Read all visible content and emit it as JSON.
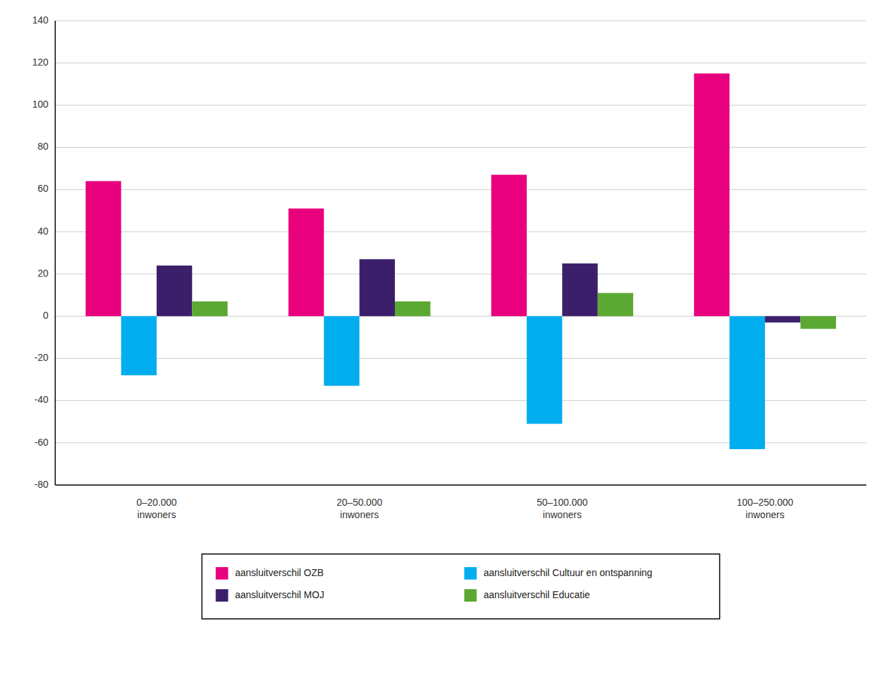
{
  "chart_data": {
    "type": "bar",
    "categories": [
      "0–20.000\ninwoners",
      "20–50.000\ninwoners",
      "50–100.000\ninwoners",
      "100–250.000\ninwoners"
    ],
    "series": [
      {
        "name": "aansluitverschil OZB",
        "color": "#E8007D",
        "values": [
          64,
          51,
          67,
          115
        ]
      },
      {
        "name": "aansluitverschil Cultuur en ontspanning",
        "color": "#00AEEF",
        "values": [
          -28,
          -33,
          -51,
          -63
        ]
      },
      {
        "name": "aansluitverschil MOJ",
        "color": "#3C1F6B",
        "values": [
          24,
          27,
          25,
          -3
        ]
      },
      {
        "name": "aansluitverschil Educatie",
        "color": "#5BA832",
        "values": [
          7,
          7,
          11,
          -6
        ]
      }
    ],
    "ylim": [
      -80,
      140
    ],
    "yticks": [
      -80,
      -60,
      -40,
      -20,
      0,
      20,
      40,
      60,
      80,
      100,
      120,
      140
    ],
    "grid": true,
    "legend": "bottom"
  }
}
